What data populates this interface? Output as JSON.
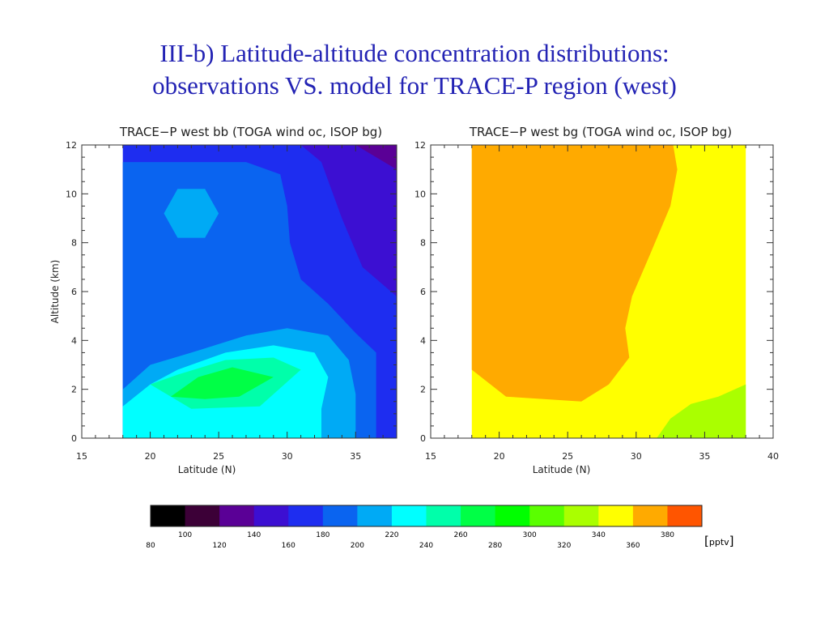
{
  "title": {
    "line1": "III-b)  Latitude-altitude concentration distributions:",
    "line2": "observations VS. model for TRACE-P region (west)"
  },
  "unit_label": "pptv",
  "chart_data": [
    {
      "type": "contour",
      "title": "TRACE−P west bb (TOGA wind oc, ISOP bg)",
      "xlabel": "Latitude (N)",
      "ylabel": "Altitude (km)",
      "xlim": [
        15,
        38
      ],
      "ylim": [
        0,
        12
      ],
      "x_ticks": [
        15,
        20,
        25,
        30,
        35
      ],
      "y_ticks": [
        0,
        2,
        4,
        6,
        8,
        10,
        12
      ],
      "data_xrange": [
        18,
        38
      ],
      "levels": [
        {
          "min": 160,
          "max": 180,
          "polygon": [
            [
              18,
              0
            ],
            [
              38,
              0
            ],
            [
              38,
              12
            ],
            [
              18,
              12
            ]
          ]
        },
        {
          "min": 140,
          "max": 160,
          "polygon": [
            [
              31,
              12
            ],
            [
              38,
              12
            ],
            [
              38,
              5.8
            ],
            [
              35.5,
              7
            ],
            [
              34,
              9
            ],
            [
              32.5,
              11.3
            ]
          ]
        },
        {
          "min": 120,
          "max": 140,
          "polygon": [
            [
              35,
              12
            ],
            [
              38,
              12
            ],
            [
              38,
              11
            ]
          ]
        },
        {
          "min": 180,
          "max": 200,
          "polygon": [
            [
              18,
              0
            ],
            [
              36.5,
              0
            ],
            [
              36.5,
              3.5
            ],
            [
              35,
              4.3
            ],
            [
              33,
              5.5
            ],
            [
              31,
              6.5
            ],
            [
              30.2,
              8
            ],
            [
              30,
              9.5
            ],
            [
              29.5,
              10.8
            ],
            [
              27,
              11.3
            ],
            [
              18,
              11.3
            ]
          ]
        },
        {
          "min": 200,
          "max": 220,
          "polygon": [
            [
              22,
              10.2
            ],
            [
              24,
              10.2
            ],
            [
              25,
              9.2
            ],
            [
              24,
              8.2
            ],
            [
              22,
              8.2
            ],
            [
              21,
              9.2
            ]
          ]
        },
        {
          "min": 200,
          "max": 220,
          "polygon": [
            [
              18,
              0
            ],
            [
              35,
              0
            ],
            [
              35,
              1.8
            ],
            [
              34.5,
              3.2
            ],
            [
              33,
              4.2
            ],
            [
              30,
              4.5
            ],
            [
              27,
              4.2
            ],
            [
              23,
              3.5
            ],
            [
              20,
              3
            ],
            [
              18,
              2
            ]
          ]
        },
        {
          "min": 220,
          "max": 240,
          "polygon": [
            [
              18,
              0
            ],
            [
              32.5,
              0
            ],
            [
              32.5,
              1.2
            ],
            [
              33,
              2.5
            ],
            [
              32,
              3.5
            ],
            [
              29,
              3.8
            ],
            [
              25.5,
              3.5
            ],
            [
              22,
              2.8
            ],
            [
              20,
              2.2
            ],
            [
              18,
              1.3
            ]
          ]
        },
        {
          "min": 240,
          "max": 260,
          "polygon": [
            [
              20,
              2.2
            ],
            [
              23,
              1.2
            ],
            [
              28,
              1.3
            ],
            [
              31,
              2.8
            ],
            [
              29,
              3.3
            ],
            [
              25.5,
              3.2
            ],
            [
              22,
              2.6
            ]
          ]
        },
        {
          "min": 260,
          "max": 280,
          "polygon": [
            [
              21.5,
              1.7
            ],
            [
              24,
              1.6
            ],
            [
              26.5,
              1.7
            ],
            [
              29,
              2.5
            ],
            [
              26,
              2.9
            ],
            [
              23.5,
              2.5
            ]
          ]
        }
      ]
    },
    {
      "type": "contour",
      "title": "TRACE−P west bg (TOGA wind oc, ISOP bg)",
      "xlabel": "Latitude (N)",
      "ylabel": "",
      "xlim": [
        15,
        40
      ],
      "ylim": [
        0,
        12
      ],
      "x_ticks": [
        15,
        20,
        25,
        30,
        35,
        40
      ],
      "y_ticks": [
        0,
        2,
        4,
        6,
        8,
        10,
        12
      ],
      "data_xrange": [
        18,
        38
      ],
      "levels": [
        {
          "min": 340,
          "max": 360,
          "polygon": [
            [
              18,
              0
            ],
            [
              38,
              0
            ],
            [
              38,
              12
            ],
            [
              18,
              12
            ]
          ]
        },
        {
          "min": 360,
          "max": 380,
          "polygon": [
            [
              18,
              12
            ],
            [
              32.7,
              12
            ],
            [
              33,
              11
            ],
            [
              32.5,
              9.5
            ],
            [
              31,
              7.5
            ],
            [
              29.7,
              5.8
            ],
            [
              29.2,
              4.5
            ],
            [
              29.5,
              3.3
            ],
            [
              28,
              2.2
            ],
            [
              26,
              1.5
            ],
            [
              20.5,
              1.7
            ],
            [
              18,
              2.8
            ]
          ]
        },
        {
          "min": 320,
          "max": 340,
          "polygon": [
            [
              31.5,
              0
            ],
            [
              38,
              0
            ],
            [
              38,
              2.2
            ],
            [
              36,
              1.7
            ],
            [
              34,
              1.4
            ],
            [
              32.5,
              0.8
            ]
          ]
        }
      ]
    }
  ],
  "colorbar": {
    "colors": [
      "#000000",
      "#3c0037",
      "#5a0096",
      "#3c0fd2",
      "#1e2df0",
      "#0a64f0",
      "#00aaf5",
      "#00ffff",
      "#00ffaa",
      "#00ff46",
      "#00ff00",
      "#5aff00",
      "#aaff00",
      "#ffff00",
      "#ffaa00",
      "#ff5500"
    ],
    "upper_labels": [
      "100",
      "140",
      "180",
      "220",
      "260",
      "300",
      "340",
      "380"
    ],
    "lower_labels": [
      "80",
      "120",
      "160",
      "200",
      "240",
      "280",
      "320",
      "360"
    ]
  }
}
